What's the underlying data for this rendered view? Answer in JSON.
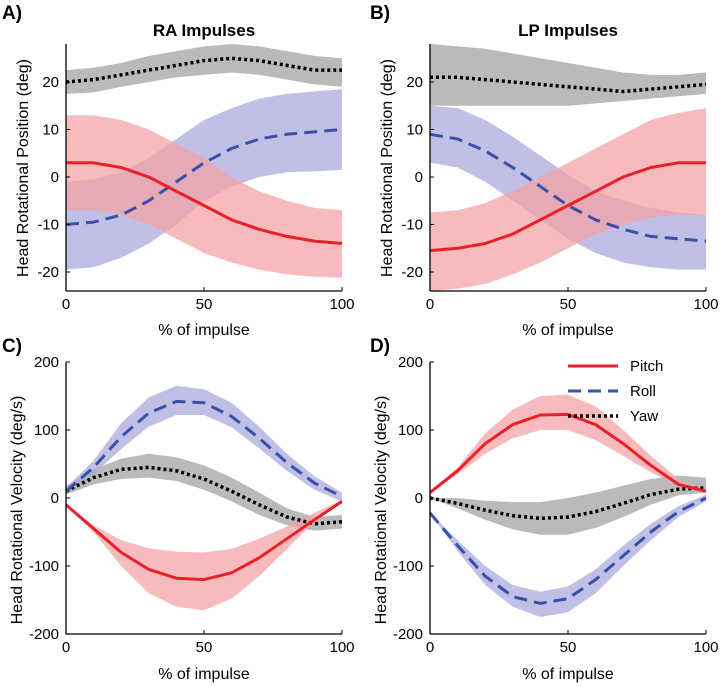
{
  "colors": {
    "pitch_line": "#e8202a",
    "pitch_band": "#f4a0a4",
    "roll_line": "#3a50a8",
    "roll_band": "#a8a8de",
    "yaw_line": "#000000",
    "yaw_band": "#a0a0a0"
  },
  "legend": {
    "pitch": "Pitch",
    "roll": "Roll",
    "yaw": "Yaw"
  },
  "chart_data": [
    {
      "panel": "A)",
      "title": "RA Impulses",
      "type": "line",
      "xlabel": "% of impulse",
      "ylabel": "Head Rotational Position (deg)",
      "xlim": [
        0,
        100
      ],
      "ylim": [
        -24,
        28
      ],
      "xticks": [
        0,
        50,
        100
      ],
      "yticks": [
        -20,
        -10,
        0,
        10,
        20
      ],
      "x": [
        0,
        10,
        20,
        30,
        40,
        50,
        60,
        70,
        80,
        90,
        100
      ],
      "series": [
        {
          "name": "Yaw",
          "style": "dotted",
          "mean": [
            20,
            20.5,
            21.5,
            22.5,
            23.5,
            24.5,
            25,
            24.5,
            23.5,
            22.5,
            22.5
          ],
          "lower": [
            17.5,
            17.8,
            19,
            20,
            21,
            21.5,
            22,
            21.5,
            20.5,
            19.5,
            19
          ],
          "upper": [
            22.5,
            23,
            24,
            25.5,
            26.5,
            27.5,
            28,
            27.5,
            26.5,
            25.5,
            25
          ]
        },
        {
          "name": "Roll",
          "style": "dashed",
          "mean": [
            -10,
            -9.5,
            -8,
            -5,
            -1,
            3,
            6,
            8,
            9,
            9.5,
            10
          ],
          "lower": [
            -19.5,
            -19,
            -17,
            -14,
            -10,
            -5,
            -2,
            0,
            1,
            1.2,
            1.5
          ],
          "upper": [
            -1,
            -0.5,
            1,
            4,
            8,
            12,
            14.5,
            16.5,
            17.5,
            18,
            18.5
          ]
        },
        {
          "name": "Pitch",
          "style": "solid",
          "mean": [
            3,
            3,
            2,
            0,
            -3,
            -6,
            -9,
            -11,
            -12.5,
            -13.5,
            -14
          ],
          "lower": [
            -7,
            -7,
            -8,
            -10,
            -13,
            -16,
            -18,
            -19.5,
            -20.5,
            -21,
            -21.2
          ],
          "upper": [
            13,
            13,
            12,
            10,
            7,
            4,
            0,
            -3,
            -5,
            -6.5,
            -7
          ]
        }
      ]
    },
    {
      "panel": "B)",
      "title": "LP Impulses",
      "type": "line",
      "xlabel": "% of impulse",
      "ylabel": "Head Rotational Position (deg)",
      "xlim": [
        0,
        100
      ],
      "ylim": [
        -24,
        28
      ],
      "xticks": [
        0,
        50,
        100
      ],
      "yticks": [
        -20,
        -10,
        0,
        10,
        20
      ],
      "x": [
        0,
        10,
        20,
        30,
        40,
        50,
        60,
        70,
        80,
        90,
        100
      ],
      "series": [
        {
          "name": "Yaw",
          "style": "dotted",
          "mean": [
            21,
            21,
            20.5,
            20,
            19.5,
            19,
            18.5,
            18,
            18.5,
            19,
            19.5
          ],
          "lower": [
            15,
            15,
            15,
            15,
            15,
            15,
            15.5,
            16,
            16.5,
            17,
            17.5
          ],
          "upper": [
            28,
            27.5,
            27,
            26,
            25,
            24,
            23,
            22,
            21.5,
            21.5,
            22
          ]
        },
        {
          "name": "Roll",
          "style": "dashed",
          "mean": [
            9,
            8,
            5.5,
            2,
            -2,
            -6,
            -9,
            -11,
            -12.5,
            -13,
            -13.5
          ],
          "lower": [
            3,
            2,
            -1,
            -5,
            -9,
            -13,
            -16,
            -18,
            -19,
            -19.5,
            -19.5
          ],
          "upper": [
            15,
            14.5,
            12,
            8.5,
            4.5,
            0.5,
            -3,
            -5,
            -6.5,
            -7.5,
            -8
          ]
        },
        {
          "name": "Pitch",
          "style": "solid",
          "mean": [
            -15.5,
            -15,
            -14,
            -12,
            -9,
            -6,
            -3,
            0,
            2,
            3,
            3
          ],
          "lower": [
            -24,
            -23.5,
            -22.5,
            -20.5,
            -18,
            -15,
            -12,
            -10,
            -8.5,
            -8,
            -8
          ],
          "upper": [
            -7.5,
            -7,
            -5.5,
            -3,
            0,
            3,
            6,
            9,
            12,
            13.5,
            14.5
          ]
        }
      ]
    },
    {
      "panel": "C)",
      "title": "",
      "type": "line",
      "xlabel": "% of impulse",
      "ylabel": "Head Rotational Velocity (deg/s)",
      "xlim": [
        0,
        100
      ],
      "ylim": [
        -200,
        200
      ],
      "xticks": [
        0,
        50,
        100
      ],
      "yticks": [
        -200,
        -100,
        0,
        100,
        200
      ],
      "x": [
        0,
        10,
        20,
        30,
        40,
        50,
        60,
        70,
        80,
        90,
        100
      ],
      "series": [
        {
          "name": "Yaw",
          "style": "dotted",
          "mean": [
            10,
            30,
            42,
            45,
            40,
            28,
            10,
            -10,
            -28,
            -38,
            -35
          ],
          "lower": [
            5,
            20,
            28,
            30,
            25,
            12,
            -5,
            -25,
            -40,
            -48,
            -45
          ],
          "upper": [
            18,
            42,
            58,
            65,
            60,
            48,
            30,
            8,
            -15,
            -28,
            -25
          ]
        },
        {
          "name": "Roll",
          "style": "dashed",
          "mean": [
            10,
            45,
            90,
            125,
            142,
            140,
            120,
            88,
            52,
            22,
            2
          ],
          "lower": [
            8,
            35,
            72,
            105,
            122,
            122,
            104,
            73,
            40,
            12,
            -5
          ],
          "upper": [
            15,
            55,
            110,
            148,
            165,
            160,
            140,
            105,
            65,
            32,
            8
          ]
        },
        {
          "name": "Pitch",
          "style": "solid",
          "mean": [
            -10,
            -45,
            -80,
            -105,
            -118,
            -120,
            -110,
            -88,
            -60,
            -32,
            -5
          ],
          "lower": [
            -10,
            -50,
            -100,
            -140,
            -160,
            -165,
            -148,
            -115,
            -75,
            -35,
            -5
          ],
          "upper": [
            -10,
            -40,
            -62,
            -74,
            -79,
            -80,
            -75,
            -60,
            -42,
            -22,
            -3
          ]
        }
      ]
    },
    {
      "panel": "D)",
      "title": "",
      "type": "line",
      "xlabel": "% of impulse",
      "ylabel": "Head Rotational Velocity (deg/s)",
      "xlim": [
        0,
        100
      ],
      "ylim": [
        -200,
        200
      ],
      "xticks": [
        0,
        50,
        100
      ],
      "yticks": [
        -200,
        -100,
        0,
        100,
        200
      ],
      "x": [
        0,
        10,
        20,
        30,
        40,
        50,
        60,
        70,
        80,
        90,
        100
      ],
      "series": [
        {
          "name": "Yaw",
          "style": "dotted",
          "mean": [
            0,
            -8,
            -18,
            -26,
            -30,
            -28,
            -20,
            -8,
            5,
            13,
            15
          ],
          "lower": [
            0,
            -15,
            -32,
            -46,
            -54,
            -54,
            -44,
            -28,
            -10,
            4,
            8
          ],
          "upper": [
            0,
            0,
            -4,
            -6,
            -6,
            0,
            8,
            18,
            28,
            33,
            30
          ]
        },
        {
          "name": "Roll",
          "style": "dashed",
          "mean": [
            -22,
            -70,
            -115,
            -145,
            -155,
            -148,
            -120,
            -85,
            -50,
            -20,
            0
          ],
          "lower": [
            -22,
            -78,
            -128,
            -160,
            -175,
            -168,
            -140,
            -100,
            -62,
            -28,
            -5
          ],
          "upper": [
            -22,
            -62,
            -100,
            -128,
            -138,
            -130,
            -105,
            -70,
            -38,
            -12,
            5
          ]
        },
        {
          "name": "Pitch",
          "style": "solid",
          "mean": [
            8,
            40,
            80,
            108,
            122,
            123,
            108,
            80,
            48,
            20,
            10
          ],
          "lower": [
            8,
            35,
            65,
            88,
            100,
            100,
            85,
            62,
            38,
            18,
            8
          ],
          "upper": [
            8,
            45,
            95,
            130,
            150,
            152,
            135,
            100,
            62,
            28,
            12
          ]
        }
      ]
    }
  ]
}
